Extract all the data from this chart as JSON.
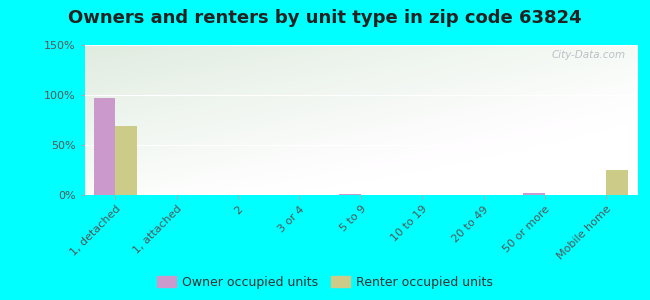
{
  "title": "Owners and renters by unit type in zip code 63824",
  "categories": [
    "1, detached",
    "1, attached",
    "2",
    "3 or 4",
    "5 to 9",
    "10 to 19",
    "20 to 49",
    "50 or more",
    "Mobile home"
  ],
  "owner_values": [
    97,
    0,
    0,
    0,
    1,
    0,
    0,
    2,
    0
  ],
  "renter_values": [
    69,
    0,
    0,
    0,
    0,
    0,
    0,
    0,
    25
  ],
  "owner_color": "#cc99cc",
  "renter_color": "#cccc88",
  "outer_bg": "#00ffff",
  "ylim": [
    0,
    150
  ],
  "yticks": [
    0,
    50,
    100,
    150
  ],
  "ytick_labels": [
    "0%",
    "50%",
    "100%",
    "150%"
  ],
  "bar_width": 0.35,
  "watermark": "City-Data.com",
  "title_fontsize": 13,
  "legend_fontsize": 9,
  "tick_fontsize": 8
}
